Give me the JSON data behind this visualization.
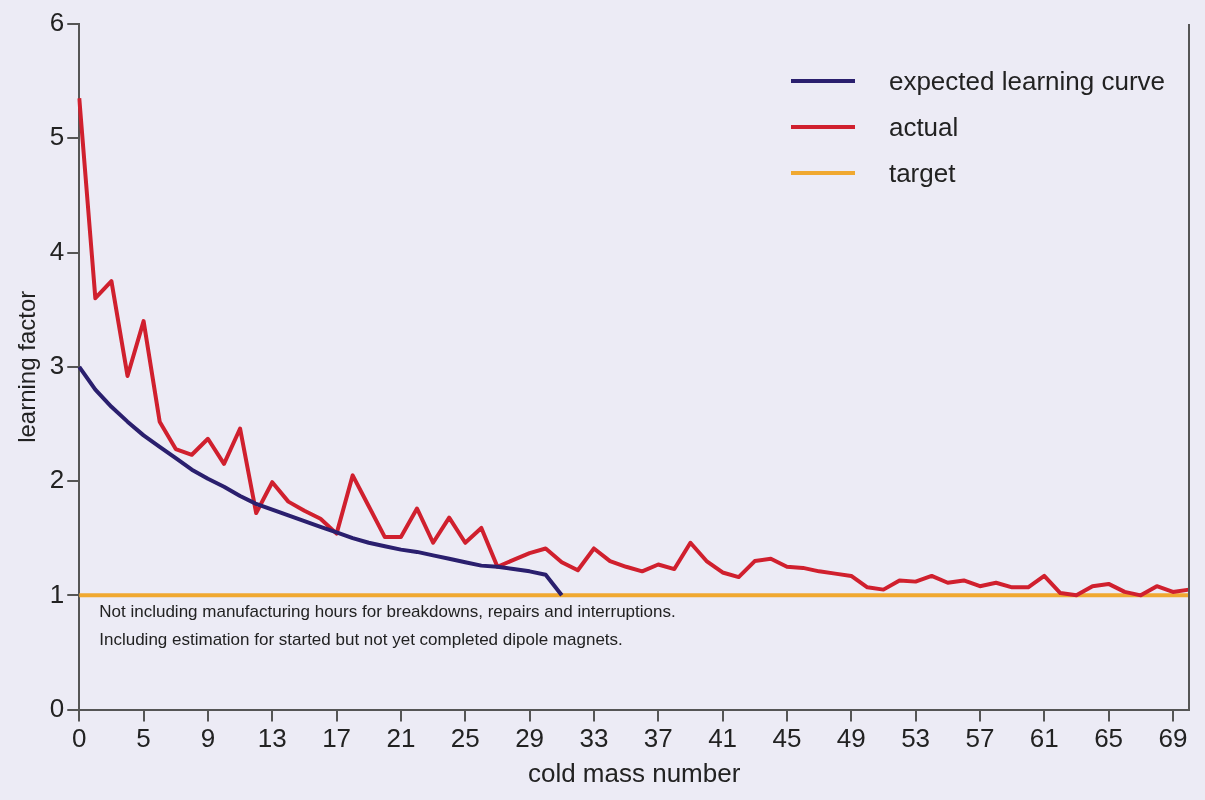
{
  "chart_data": {
    "type": "line",
    "xlabel": "cold mass number",
    "ylabel": "learning factor",
    "categories": [
      "0",
      null,
      null,
      null,
      "5",
      null,
      null,
      null,
      "9",
      null,
      null,
      null,
      "13",
      null,
      null,
      null,
      "17",
      null,
      null,
      null,
      "21",
      null,
      null,
      null,
      "25",
      null,
      null,
      null,
      "29",
      null,
      null,
      null,
      "33",
      null,
      null,
      null,
      "37",
      null,
      null,
      null,
      "41",
      null,
      null,
      null,
      "45",
      null,
      null,
      null,
      "49",
      null,
      null,
      null,
      "53",
      null,
      null,
      null,
      "57",
      null,
      null,
      null,
      "61",
      null,
      null,
      null,
      "65",
      null,
      null,
      null,
      "69",
      null
    ],
    "ylim": [
      0,
      6
    ],
    "yticks": [
      0,
      1,
      2,
      3,
      4,
      5,
      6
    ],
    "grid": false,
    "legend": "top right",
    "marker": "none",
    "line_style": "solid",
    "series": [
      {
        "name": "expected learning curve",
        "color": "#2a1f6e",
        "values": [
          3.0,
          2.8,
          2.65,
          2.52,
          2.4,
          2.3,
          2.2,
          2.1,
          2.02,
          1.95,
          1.87,
          1.8,
          1.75,
          1.7,
          1.65,
          1.6,
          1.55,
          1.5,
          1.46,
          1.43,
          1.4,
          1.38,
          1.35,
          1.32,
          1.29,
          1.26,
          1.25,
          1.23,
          1.21,
          1.18,
          1.0,
          null,
          null,
          null,
          null,
          null,
          null,
          null,
          null,
          null,
          null,
          null,
          null,
          null,
          null,
          null,
          null,
          null,
          null,
          null,
          null,
          null,
          null,
          null,
          null,
          null,
          null,
          null,
          null,
          null,
          null,
          null,
          null,
          null,
          null,
          null,
          null,
          null,
          null,
          null
        ]
      },
      {
        "name": "actual",
        "color": "#d0202e",
        "values": [
          5.35,
          3.6,
          3.75,
          2.92,
          3.4,
          2.52,
          2.28,
          2.23,
          2.37,
          2.15,
          2.46,
          1.72,
          1.99,
          1.82,
          1.74,
          1.67,
          1.54,
          2.05,
          1.78,
          1.51,
          1.51,
          1.76,
          1.46,
          1.68,
          1.46,
          1.59,
          1.25,
          1.31,
          1.37,
          1.41,
          1.29,
          1.22,
          1.41,
          1.3,
          1.25,
          1.21,
          1.27,
          1.23,
          1.46,
          1.3,
          1.2,
          1.16,
          1.3,
          1.32,
          1.25,
          1.24,
          1.21,
          1.19,
          1.17,
          1.07,
          1.05,
          1.13,
          1.12,
          1.17,
          1.11,
          1.13,
          1.08,
          1.11,
          1.07,
          1.07,
          1.17,
          1.02,
          1.0,
          1.08,
          1.1,
          1.03,
          1.0,
          1.08,
          1.03,
          1.05
        ]
      },
      {
        "name": "target",
        "color": "#f0a830",
        "values": [
          1,
          1,
          1,
          1,
          1,
          1,
          1,
          1,
          1,
          1,
          1,
          1,
          1,
          1,
          1,
          1,
          1,
          1,
          1,
          1,
          1,
          1,
          1,
          1,
          1,
          1,
          1,
          1,
          1,
          1,
          1,
          1,
          1,
          1,
          1,
          1,
          1,
          1,
          1,
          1,
          1,
          1,
          1,
          1,
          1,
          1,
          1,
          1,
          1,
          1,
          1,
          1,
          1,
          1,
          1,
          1,
          1,
          1,
          1,
          1,
          1,
          1,
          1,
          1,
          1,
          1,
          1,
          1,
          1,
          1
        ]
      }
    ],
    "annotations": [
      "Not including manufacturing hours for breakdowns, repairs and interruptions.",
      "Including estimation for started but not yet completed dipole magnets."
    ]
  }
}
